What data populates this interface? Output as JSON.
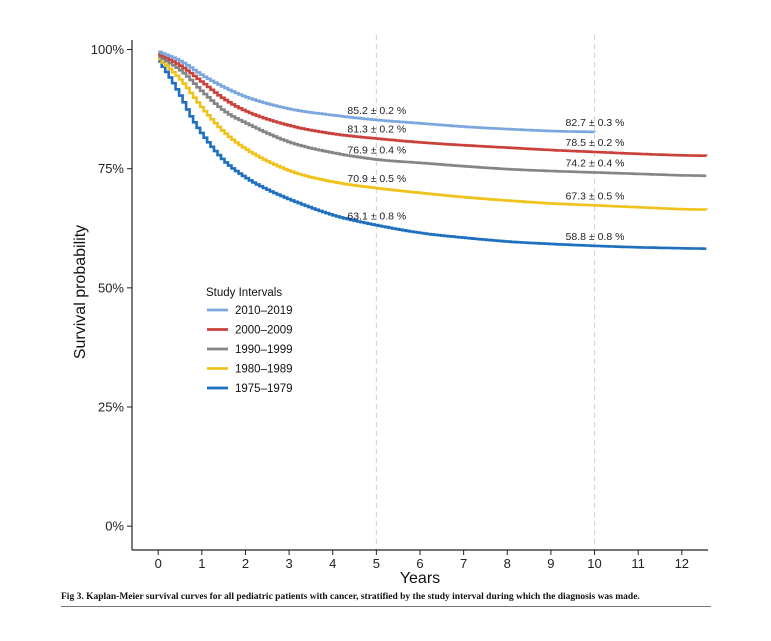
{
  "chart_data": {
    "type": "line",
    "step": true,
    "xlabel": "Years",
    "ylabel": "Survival probability",
    "xlim": [
      -0.6,
      12.6
    ],
    "ylim": [
      -0.05,
      1.02
    ],
    "x_ticks": [
      0,
      1,
      2,
      3,
      4,
      5,
      6,
      7,
      8,
      9,
      10,
      11,
      12
    ],
    "x_tick_labels": [
      "0",
      "1",
      "2",
      "3",
      "4",
      "5",
      "6",
      "7",
      "8",
      "9",
      "10",
      "11",
      "12"
    ],
    "y_ticks": [
      0,
      0.25,
      0.5,
      0.75,
      1.0
    ],
    "y_tick_labels": [
      "0%",
      "25%",
      "50%",
      "75%",
      "100%"
    ],
    "reference_lines_x": [
      5,
      10
    ],
    "legend_title": "Study Intervals",
    "legend_position": "center-left",
    "series": [
      {
        "name": "2010–2019",
        "color": "#7BA7DE",
        "x": [
          0,
          0.5,
          1,
          1.5,
          2,
          3,
          4,
          5,
          6,
          7,
          8,
          9,
          10
        ],
        "y": [
          0.995,
          0.975,
          0.945,
          0.92,
          0.9,
          0.875,
          0.862,
          0.852,
          0.845,
          0.838,
          0.833,
          0.829,
          0.827
        ]
      },
      {
        "name": "2000–2009",
        "color": "#C9413A",
        "x": [
          0,
          0.5,
          1,
          1.5,
          2,
          3,
          4,
          5,
          6,
          7,
          8,
          9,
          10,
          11,
          12,
          12.6
        ],
        "y": [
          0.99,
          0.965,
          0.93,
          0.895,
          0.87,
          0.84,
          0.823,
          0.813,
          0.805,
          0.799,
          0.794,
          0.789,
          0.785,
          0.781,
          0.778,
          0.777
        ]
      },
      {
        "name": "1990–1999",
        "color": "#858585",
        "x": [
          0,
          0.5,
          1,
          1.5,
          2,
          3,
          4,
          5,
          6,
          7,
          8,
          9,
          10,
          11,
          12,
          12.6
        ],
        "y": [
          0.985,
          0.955,
          0.91,
          0.87,
          0.845,
          0.805,
          0.783,
          0.769,
          0.762,
          0.755,
          0.749,
          0.745,
          0.742,
          0.739,
          0.736,
          0.735
        ]
      },
      {
        "name": "1980–1989",
        "color": "#EFC21C",
        "x": [
          0,
          0.5,
          1,
          1.5,
          2,
          3,
          4,
          5,
          6,
          7,
          8,
          9,
          10,
          11,
          12,
          12.6
        ],
        "y": [
          0.98,
          0.935,
          0.875,
          0.825,
          0.79,
          0.745,
          0.722,
          0.709,
          0.699,
          0.69,
          0.683,
          0.677,
          0.673,
          0.669,
          0.665,
          0.664
        ]
      },
      {
        "name": "1975–1979",
        "color": "#1F6FBF",
        "x": [
          0,
          0.25,
          0.5,
          0.75,
          1,
          1.5,
          2,
          2.5,
          3,
          4,
          5,
          6,
          7,
          8,
          9,
          10,
          11,
          12,
          12.6
        ],
        "y": [
          0.975,
          0.94,
          0.9,
          0.855,
          0.82,
          0.765,
          0.73,
          0.705,
          0.685,
          0.652,
          0.631,
          0.615,
          0.605,
          0.597,
          0.592,
          0.588,
          0.585,
          0.583,
          0.582
        ]
      }
    ],
    "annotations": [
      {
        "x": 5,
        "y": 0.852,
        "text": "85.2 ± 0.2 %"
      },
      {
        "x": 5,
        "y": 0.813,
        "text": "81.3 ± 0.2 %"
      },
      {
        "x": 5,
        "y": 0.769,
        "text": "76.9 ± 0.4 %"
      },
      {
        "x": 5,
        "y": 0.709,
        "text": "70.9 ± 0.5 %"
      },
      {
        "x": 5,
        "y": 0.631,
        "text": "63.1 ± 0.8 %"
      },
      {
        "x": 10,
        "y": 0.827,
        "text": "82.7 ± 0.3 %"
      },
      {
        "x": 10,
        "y": 0.785,
        "text": "78.5 ± 0.2 %"
      },
      {
        "x": 10,
        "y": 0.742,
        "text": "74.2 ± 0.4 %"
      },
      {
        "x": 10,
        "y": 0.673,
        "text": "67.3 ± 0.5 %"
      },
      {
        "x": 10,
        "y": 0.588,
        "text": "58.8 ± 0.8 %"
      }
    ]
  },
  "caption": "Fig 3. Kaplan-Meier survival curves for all pediatric patients with cancer, stratified by the study interval during which the diagnosis was made."
}
